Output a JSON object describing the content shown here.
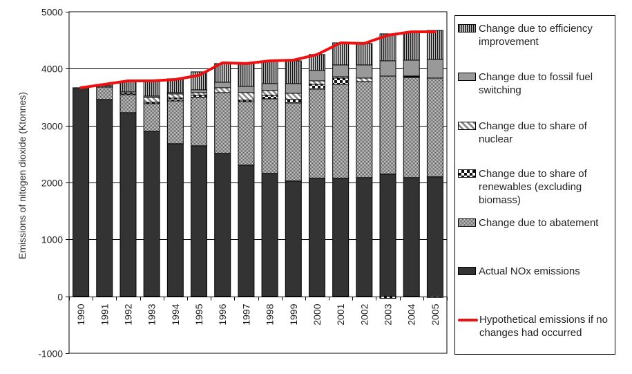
{
  "chart_data": {
    "type": "bar",
    "stacked": true,
    "title": "",
    "xlabel": "",
    "ylabel": "Emissions of nitogen dioxide (Ktonnes)",
    "ylim": [
      -1000,
      5000
    ],
    "yticks": [
      -1000,
      0,
      1000,
      2000,
      3000,
      4000,
      5000
    ],
    "ytick_labels": [
      "-1000",
      "0",
      "1000",
      "2000",
      "3000",
      "4000",
      "5000"
    ],
    "grid": true,
    "legend_position": "right",
    "categories": [
      "1990",
      "1991",
      "1992",
      "1993",
      "1994",
      "1995",
      "1996",
      "1997",
      "1998",
      "1999",
      "2000",
      "2001",
      "2002",
      "2003",
      "2004",
      "2005"
    ],
    "series": [
      {
        "name": "Actual NOx emissions",
        "pattern": "solid-dark",
        "color": "#333333",
        "values": [
          3665,
          3459,
          3228,
          2900,
          2682,
          2645,
          2512,
          2306,
          2160,
          2027,
          2075,
          2075,
          2087,
          2148,
          2087,
          2100
        ]
      },
      {
        "name": "Change due to abatement",
        "pattern": "stipple",
        "color": "#9a9a9a",
        "values": [
          0,
          218,
          316,
          486,
          752,
          850,
          1068,
          1116,
          1311,
          1371,
          1566,
          1651,
          1687,
          1722,
          1760,
          1735
        ]
      },
      {
        "name": "Change due to share of renewables (excluding biomass)",
        "pattern": "checker",
        "color": "#000000",
        "values": [
          0,
          0,
          24,
          24,
          49,
          37,
          0,
          25,
          61,
          61,
          85,
          109,
          0,
          -35,
          12,
          0
        ]
      },
      {
        "name": "Change due to share of nuclear",
        "pattern": "diagonal",
        "color": "#888888",
        "values": [
          0,
          0,
          24,
          85,
          73,
          48,
          85,
          133,
          85,
          109,
          60,
          24,
          61,
          0,
          12,
          -20
        ]
      },
      {
        "name": "Change due to fossil fuel switching",
        "pattern": "solid-grey",
        "color": "#999999",
        "values": [
          0,
          23,
          0,
          24,
          24,
          49,
          97,
          110,
          121,
          170,
          182,
          207,
          231,
          268,
          279,
          328
        ]
      },
      {
        "name": "Change due to efficiency improvement",
        "pattern": "vertical",
        "color": "#777777",
        "values": [
          0,
          25,
          183,
          256,
          243,
          315,
          328,
          400,
          392,
          400,
          280,
          388,
          376,
          474,
          486,
          509
        ]
      }
    ],
    "line": {
      "name": "Hypothetical emissions if no changes had occurred",
      "color": "#ee1111",
      "values": [
        3665,
        3725,
        3786,
        3786,
        3810,
        3883,
        4102,
        4090,
        4138,
        4150,
        4248,
        4454,
        4442,
        4587,
        4648,
        4648
      ]
    }
  },
  "legend": {
    "items": [
      {
        "label": "Change due to efficiency improvement",
        "pattern": "vertical"
      },
      {
        "label": "Change due to fossil fuel switching",
        "pattern": "solid-grey"
      },
      {
        "label": "Change due to share of nuclear",
        "pattern": "diagonal"
      },
      {
        "label": "Change due to share of renewables (excluding biomass)",
        "pattern": "checker"
      },
      {
        "label": "Change due to abatement",
        "pattern": "stipple"
      },
      {
        "label": "Actual NOx emissions",
        "pattern": "solid-dark"
      },
      {
        "label": "Hypothetical emissions if no changes had occurred",
        "pattern": "line"
      }
    ]
  }
}
